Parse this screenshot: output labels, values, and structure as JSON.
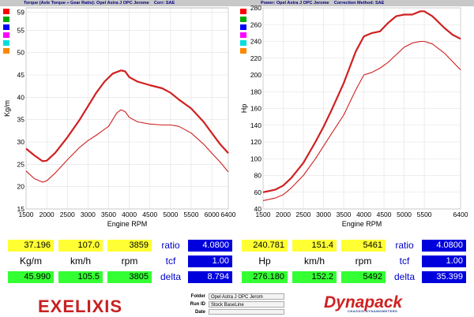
{
  "chart_data": [
    {
      "type": "line",
      "title": "Torque (Axle Torque ÷ Gear Ratio): Opel Astra J OPC Jerome    Corr: SAE",
      "xlabel": "Engine RPM",
      "ylabel": "Kg/m",
      "xlim": [
        1500,
        6400
      ],
      "ylim": [
        15,
        60
      ],
      "xticks": [
        "1500",
        "2000",
        "2500",
        "3000",
        "3500",
        "4000",
        "4500",
        "5000",
        "5500",
        "6000",
        "6400"
      ],
      "yticks": [
        "15",
        "20",
        "25",
        "30",
        "35",
        "40",
        "45",
        "50",
        "55",
        "59"
      ],
      "grid": true,
      "series": [
        {
          "color": "#d02020",
          "x": [
            1500,
            1700,
            1900,
            2000,
            2200,
            2500,
            2800,
            3000,
            3200,
            3400,
            3600,
            3800,
            3900,
            4000,
            4200,
            4500,
            4800,
            5000,
            5200,
            5500,
            5800,
            6000,
            6200,
            6400
          ],
          "values": [
            28.5,
            27,
            25.7,
            25.8,
            27.5,
            31,
            35,
            38,
            41,
            43.5,
            45.3,
            46,
            45.8,
            44.5,
            43.5,
            42.7,
            42,
            41,
            39.5,
            37.5,
            34.5,
            32,
            29.5,
            27.5
          ]
        },
        {
          "color": "#d02020",
          "x": [
            1500,
            1700,
            1900,
            2000,
            2200,
            2500,
            2800,
            3000,
            3200,
            3500,
            3700,
            3800,
            3900,
            4000,
            4200,
            4500,
            4800,
            5000,
            5200,
            5500,
            5800,
            6000,
            6200,
            6400
          ],
          "values": [
            23.5,
            21.8,
            21,
            21.3,
            23,
            26,
            28.8,
            30.3,
            31.5,
            33.5,
            36.5,
            37.2,
            36.8,
            35.5,
            34.5,
            34,
            33.8,
            33.8,
            33.5,
            32,
            29.5,
            27.5,
            25.5,
            23.3
          ]
        }
      ]
    },
    {
      "type": "line",
      "title": "Power: Opel Astra J OPC Jerome    Correction Method: SAE",
      "xlabel": "Engine RPM",
      "ylabel": "Hp",
      "xlim": [
        1500,
        6400
      ],
      "ylim": [
        40,
        280
      ],
      "xticks": [
        "1500",
        "2000",
        "2500",
        "3000",
        "3500",
        "4000",
        "4500",
        "5000",
        "5500",
        "6400"
      ],
      "yticks": [
        "40",
        "60",
        "80",
        "100",
        "120",
        "140",
        "160",
        "180",
        "200",
        "220",
        "240",
        "260",
        "280"
      ],
      "grid": true,
      "series": [
        {
          "color": "#d02020",
          "x": [
            1500,
            1800,
            2000,
            2200,
            2500,
            2800,
            3000,
            3200,
            3500,
            3800,
            4000,
            4200,
            4400,
            4600,
            4800,
            5000,
            5200,
            5400,
            5500,
            5700,
            6000,
            6200,
            6400
          ],
          "values": [
            60,
            63,
            68,
            77,
            95,
            120,
            138,
            158,
            190,
            228,
            246,
            250,
            252,
            262,
            270,
            272,
            272,
            276,
            276,
            270,
            256,
            248,
            243
          ]
        },
        {
          "color": "#d02020",
          "x": [
            1500,
            1800,
            2000,
            2200,
            2500,
            2800,
            3000,
            3200,
            3500,
            3800,
            4000,
            4200,
            4400,
            4600,
            4800,
            5000,
            5200,
            5400,
            5500,
            5700,
            6000,
            6200,
            6400
          ],
          "values": [
            50,
            53,
            57,
            65,
            80,
            100,
            115,
            130,
            152,
            182,
            200,
            203,
            208,
            215,
            224,
            233,
            238,
            240,
            240,
            237,
            226,
            216,
            206
          ]
        }
      ]
    }
  ],
  "readouts_left": {
    "row1": {
      "a": "37.196",
      "b": "107.0",
      "c": "3859"
    },
    "units": {
      "a": "Kg/m",
      "b": "km/h",
      "c": "rpm"
    },
    "row3": {
      "a": "45.990",
      "b": "105.5",
      "c": "3805"
    },
    "ratio_label": "ratio",
    "ratio_value": "4.0800",
    "tcf_label": "tcf",
    "tcf_value": "1.00",
    "delta_label": "delta",
    "delta_value": "8.794"
  },
  "readouts_right": {
    "row1": {
      "a": "240.781",
      "b": "151.4",
      "c": "5461"
    },
    "units": {
      "a": "Hp",
      "b": "km/h",
      "c": "rpm"
    },
    "row3": {
      "a": "276.180",
      "b": "152.2",
      "c": "5492"
    },
    "ratio_label": "ratio",
    "ratio_value": "4.0800",
    "tcf_label": "tcf",
    "tcf_value": "1.00",
    "delta_label": "delta",
    "delta_value": "35.399"
  },
  "footer": {
    "logo_left": "EXELIXIS",
    "folder_label": "Folder",
    "folder_value": "Opel Astra J OPC Jerom",
    "runid_label": "Run ID",
    "runid_value": "Stock BaseLine",
    "date_label": "Date",
    "logo_right": "Dynapack",
    "logo_right_sub": "CHASSIS DYNAMOMETERS"
  }
}
